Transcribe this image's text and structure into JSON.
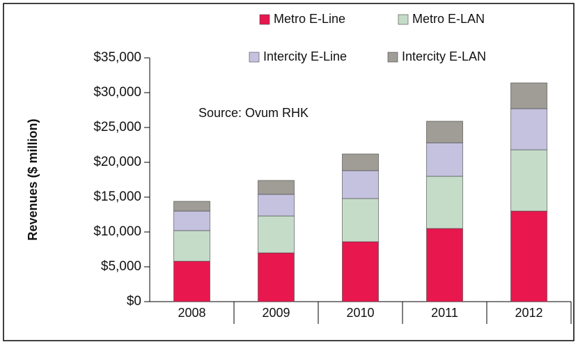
{
  "chart_data": {
    "type": "stacked_bar",
    "y_label": "Revenues ($ million)",
    "annotation": "Source: Ovum RHK",
    "categories": [
      "2008",
      "2009",
      "2010",
      "2011",
      "2012"
    ],
    "series": [
      {
        "name": "Metro E-Line",
        "color": "#e8174e",
        "values": [
          5800,
          7000,
          8600,
          10500,
          13000
        ]
      },
      {
        "name": "Metro E-LAN",
        "color": "#c5dcc9",
        "values": [
          4400,
          5300,
          6200,
          7500,
          8800
        ]
      },
      {
        "name": "Intercity E-Line",
        "color": "#c5c2e0",
        "values": [
          2800,
          3100,
          4000,
          4800,
          5900
        ]
      },
      {
        "name": "Intercity E-LAN",
        "color": "#a09d96",
        "values": [
          1400,
          2000,
          2400,
          3100,
          3700
        ]
      }
    ],
    "ylim": [
      0,
      35000
    ],
    "yticks": [
      {
        "value": 0,
        "label": "$0"
      },
      {
        "value": 5000,
        "label": "$5,000"
      },
      {
        "value": 10000,
        "label": "$10,000"
      },
      {
        "value": 15000,
        "label": "$15,000"
      },
      {
        "value": 20000,
        "label": "$20,000"
      },
      {
        "value": 25000,
        "label": "$25,000"
      },
      {
        "value": 30000,
        "label": "$30,000"
      },
      {
        "value": 35000,
        "label": "$35,000"
      }
    ]
  }
}
